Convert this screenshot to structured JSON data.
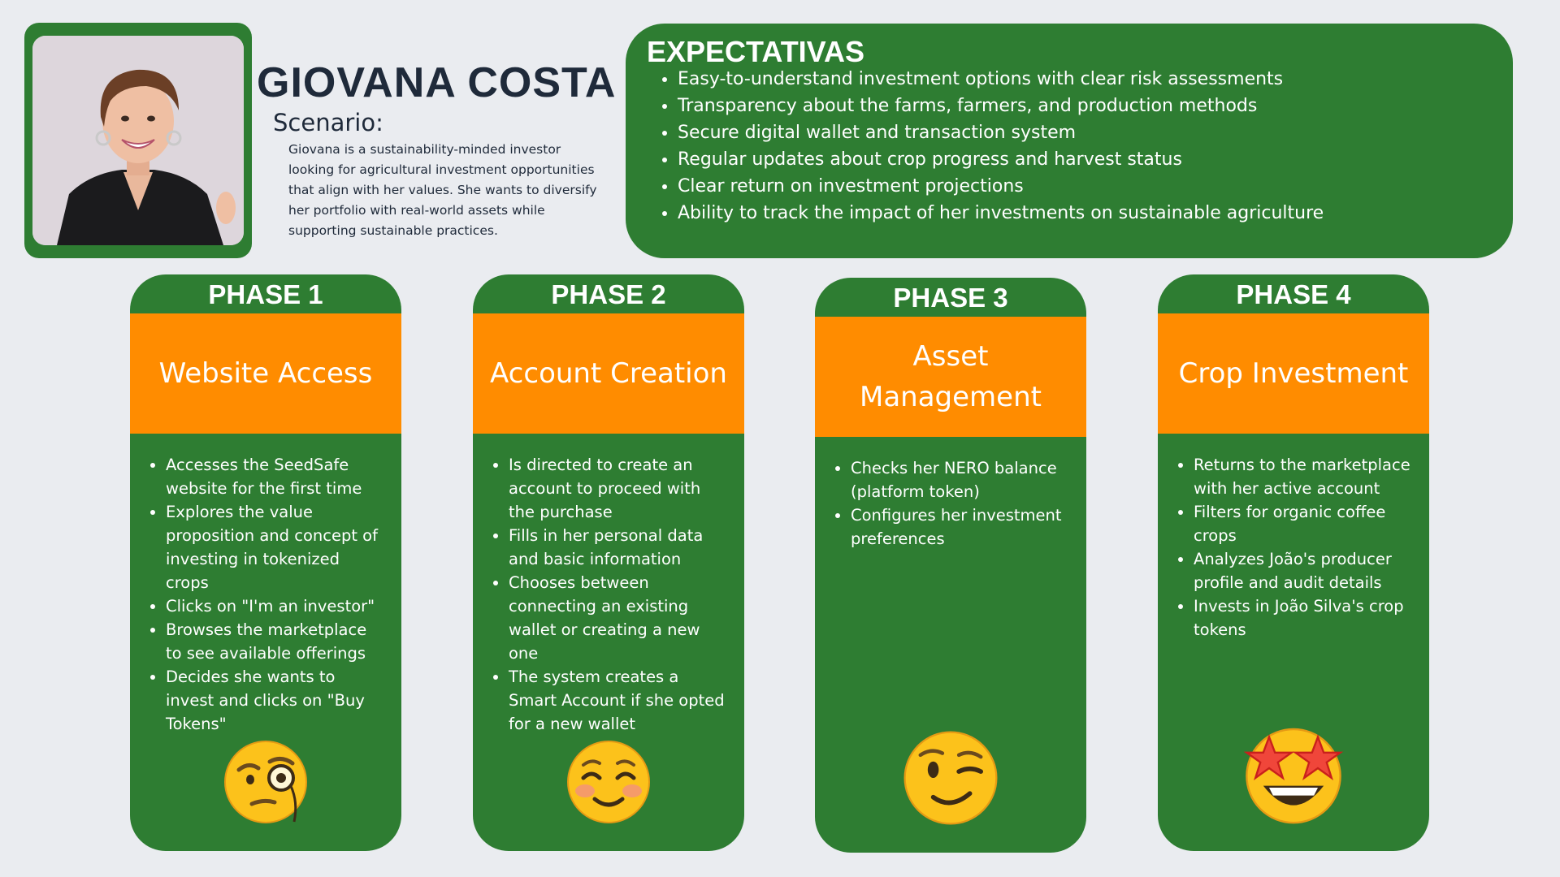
{
  "persona": {
    "name": "GIOVANA COSTA",
    "scenario_label": "Scenario:",
    "scenario_text": "Giovana is a sustainability-minded investor looking for agricultural investment opportunities that align with her values. She wants to diversify her portfolio with real-world assets while supporting sustainable practices."
  },
  "expectations": {
    "title": "EXPECTATIVAS",
    "items": [
      "Easy-to-understand investment options with clear risk assessments",
      "Transparency about the farms, farmers, and production methods",
      "Secure digital wallet and transaction system",
      "Regular updates about crop progress and harvest status",
      "Clear return on investment projections",
      "Ability to track the impact of her investments on sustainable agriculture"
    ]
  },
  "phases": [
    {
      "title": "PHASE 1",
      "heading": "Website Access",
      "items": [
        "Accesses the SeedSafe website for the first time",
        "Explores the value proposition and concept of investing in tokenized crops",
        "Clicks on \"I'm an investor\"",
        "Browses the marketplace to see available offerings",
        "Decides she wants to invest and clicks on \"Buy Tokens\""
      ],
      "emoji": "face-with-monocle-icon"
    },
    {
      "title": "PHASE 2",
      "heading": "Account Creation",
      "items": [
        "Is directed to create an account to proceed with the purchase",
        "Fills in her personal data and basic information",
        "Chooses between connecting an existing wallet or creating a new one",
        "The system creates a Smart Account if she opted for a new wallet"
      ],
      "emoji": "smiling-face-icon"
    },
    {
      "title": "PHASE 3",
      "heading": "Asset Management",
      "items": [
        "Checks her NERO balance (platform token)",
        "Configures her investment preferences"
      ],
      "emoji": "winking-face-icon"
    },
    {
      "title": "PHASE 4",
      "heading": "Crop Investment",
      "items": [
        "Returns to the marketplace with her active account",
        "Filters for organic coffee crops",
        "Analyzes João's producer profile and audit details",
        "Invests in João Silva's crop tokens"
      ],
      "emoji": "star-struck-icon"
    }
  ],
  "colors": {
    "green": "#2e7d32",
    "orange": "#ff8c00",
    "background": "#eaecf0",
    "navy_text": "#1f2a3a"
  }
}
